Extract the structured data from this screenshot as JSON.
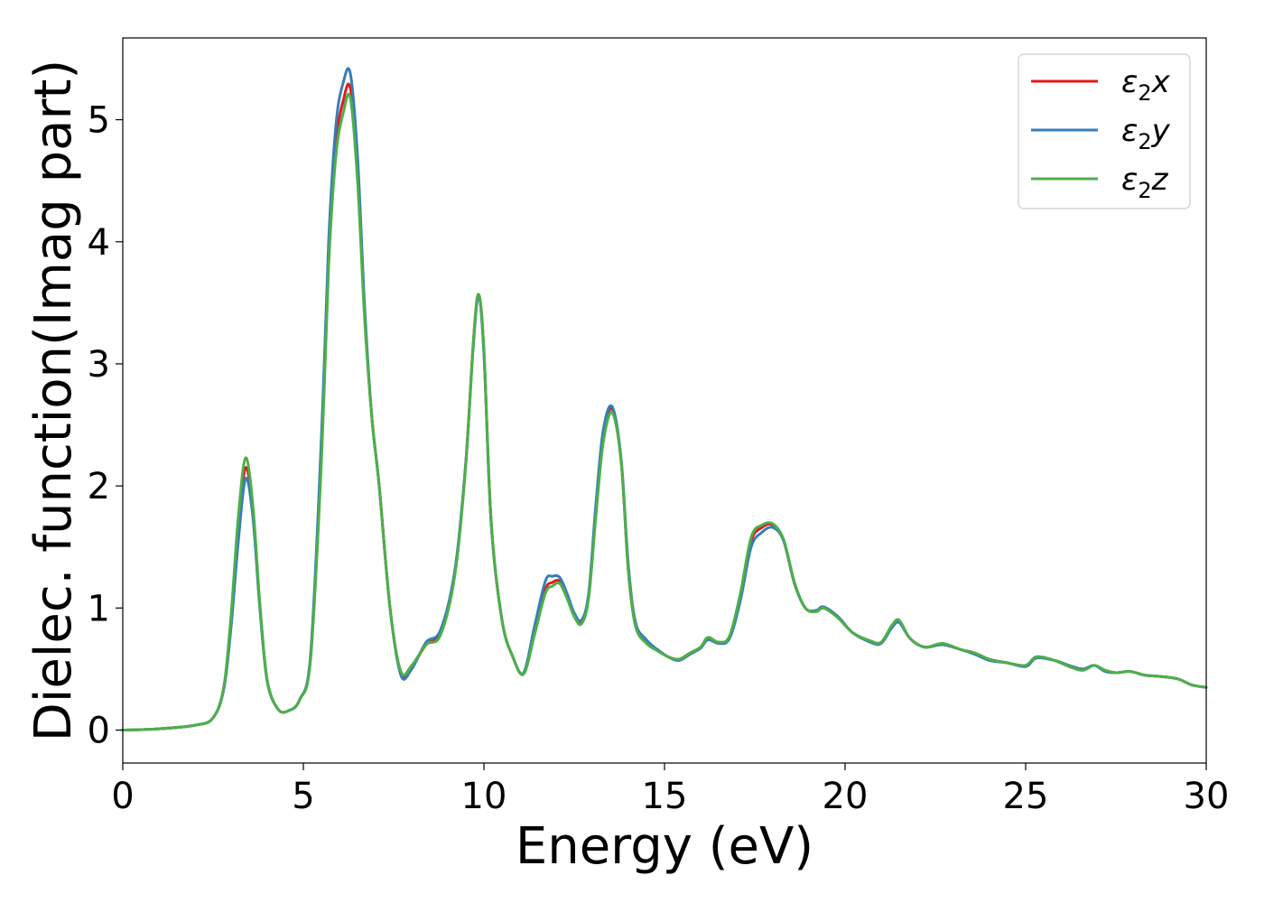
{
  "chart_data": {
    "type": "line",
    "xlabel": "Energy (eV)",
    "ylabel": "Dielec. function(Imag part)",
    "xlim": [
      0,
      30
    ],
    "ylim": [
      -0.27,
      5.67
    ],
    "xticks": [
      0,
      5,
      10,
      15,
      20,
      25,
      30
    ],
    "yticks": [
      0,
      1,
      2,
      3,
      4,
      5
    ],
    "grid": false,
    "legend_position": "top-right",
    "series": [
      {
        "name": "ε₂x",
        "legend": {
          "base": "ε",
          "sub": "2",
          "suffix": "x"
        },
        "color": "#e41a1c",
        "x": [
          0,
          1,
          2,
          2.5,
          2.8,
          3.0,
          3.2,
          3.4,
          3.6,
          3.8,
          4.0,
          4.3,
          4.6,
          4.9,
          5.2,
          5.5,
          5.7,
          5.9,
          6.1,
          6.3,
          6.5,
          6.7,
          6.9,
          7.1,
          7.4,
          7.7,
          8.0,
          8.4,
          8.8,
          9.2,
          9.5,
          9.7,
          9.85,
          10.0,
          10.2,
          10.5,
          10.8,
          11.1,
          11.4,
          11.7,
          11.9,
          12.1,
          12.3,
          12.5,
          12.7,
          12.9,
          13.1,
          13.3,
          13.55,
          13.8,
          14.0,
          14.2,
          14.5,
          14.8,
          15.1,
          15.4,
          15.7,
          16.0,
          16.2,
          16.5,
          16.8,
          17.1,
          17.4,
          17.7,
          18.0,
          18.3,
          18.6,
          18.9,
          19.2,
          19.4,
          19.8,
          20.2,
          20.7,
          21.0,
          21.3,
          21.5,
          21.8,
          22.2,
          22.7,
          23.2,
          23.6,
          24.0,
          24.5,
          25.0,
          25.3,
          25.8,
          26.3,
          26.6,
          26.9,
          27.2,
          27.5,
          27.9,
          28.3,
          28.7,
          29.2,
          29.6,
          30.0
        ],
        "y": [
          0,
          0.01,
          0.04,
          0.1,
          0.35,
          0.9,
          1.65,
          2.15,
          1.8,
          1.0,
          0.4,
          0.17,
          0.16,
          0.25,
          0.6,
          2.3,
          3.9,
          4.8,
          5.15,
          5.26,
          4.6,
          3.4,
          2.55,
          2.0,
          1.0,
          0.47,
          0.52,
          0.7,
          0.8,
          1.3,
          2.2,
          3.15,
          3.57,
          3.1,
          1.7,
          0.9,
          0.6,
          0.46,
          0.8,
          1.15,
          1.21,
          1.22,
          1.1,
          0.95,
          0.89,
          1.1,
          1.8,
          2.4,
          2.63,
          2.2,
          1.3,
          0.85,
          0.72,
          0.66,
          0.6,
          0.58,
          0.63,
          0.68,
          0.75,
          0.72,
          0.76,
          1.1,
          1.55,
          1.66,
          1.68,
          1.55,
          1.2,
          1.0,
          0.97,
          1.0,
          0.93,
          0.8,
          0.73,
          0.72,
          0.85,
          0.89,
          0.75,
          0.68,
          0.7,
          0.66,
          0.63,
          0.58,
          0.55,
          0.53,
          0.6,
          0.57,
          0.51,
          0.5,
          0.53,
          0.49,
          0.47,
          0.48,
          0.45,
          0.44,
          0.42,
          0.37,
          0.35
        ]
      },
      {
        "name": "ε₂y",
        "legend": {
          "base": "ε",
          "sub": "2",
          "suffix": "y"
        },
        "color": "#377eb8",
        "x": [
          0,
          1,
          2,
          2.5,
          2.8,
          3.0,
          3.2,
          3.4,
          3.6,
          3.8,
          4.0,
          4.3,
          4.6,
          4.9,
          5.2,
          5.5,
          5.7,
          5.9,
          6.1,
          6.3,
          6.5,
          6.7,
          6.9,
          7.1,
          7.4,
          7.7,
          8.0,
          8.4,
          8.8,
          9.2,
          9.5,
          9.7,
          9.85,
          10.0,
          10.2,
          10.5,
          10.8,
          11.1,
          11.4,
          11.7,
          11.9,
          12.1,
          12.3,
          12.5,
          12.7,
          12.9,
          13.1,
          13.3,
          13.55,
          13.8,
          14.0,
          14.2,
          14.5,
          14.8,
          15.1,
          15.4,
          15.7,
          16.0,
          16.2,
          16.5,
          16.8,
          17.1,
          17.4,
          17.7,
          18.0,
          18.3,
          18.6,
          18.9,
          19.2,
          19.4,
          19.8,
          20.2,
          20.7,
          21.0,
          21.3,
          21.5,
          21.8,
          22.2,
          22.7,
          23.2,
          23.6,
          24.0,
          24.5,
          25.0,
          25.3,
          25.8,
          26.3,
          26.6,
          26.9,
          27.2,
          27.5,
          27.9,
          28.3,
          28.7,
          29.2,
          29.6,
          30.0
        ],
        "y": [
          0,
          0.01,
          0.04,
          0.1,
          0.34,
          0.85,
          1.55,
          2.06,
          1.75,
          0.98,
          0.4,
          0.17,
          0.16,
          0.25,
          0.62,
          2.4,
          4.0,
          4.95,
          5.3,
          5.38,
          4.7,
          3.45,
          2.55,
          2.0,
          1.0,
          0.45,
          0.5,
          0.72,
          0.82,
          1.32,
          2.2,
          3.12,
          3.55,
          3.08,
          1.7,
          0.9,
          0.6,
          0.47,
          0.85,
          1.22,
          1.26,
          1.25,
          1.12,
          0.96,
          0.9,
          1.12,
          1.85,
          2.45,
          2.65,
          2.22,
          1.35,
          0.88,
          0.74,
          0.66,
          0.6,
          0.57,
          0.62,
          0.67,
          0.74,
          0.71,
          0.75,
          1.06,
          1.5,
          1.62,
          1.66,
          1.55,
          1.2,
          1.0,
          0.98,
          1.01,
          0.93,
          0.8,
          0.72,
          0.71,
          0.84,
          0.88,
          0.75,
          0.68,
          0.7,
          0.66,
          0.62,
          0.57,
          0.55,
          0.52,
          0.59,
          0.57,
          0.52,
          0.5,
          0.53,
          0.48,
          0.47,
          0.48,
          0.45,
          0.44,
          0.42,
          0.37,
          0.35
        ]
      },
      {
        "name": "ε₂z",
        "legend": {
          "base": "ε",
          "sub": "2",
          "suffix": "z"
        },
        "color": "#4daf4a",
        "x": [
          0,
          1,
          2,
          2.5,
          2.8,
          3.0,
          3.2,
          3.4,
          3.6,
          3.8,
          4.0,
          4.3,
          4.6,
          4.9,
          5.2,
          5.5,
          5.7,
          5.9,
          6.1,
          6.3,
          6.5,
          6.7,
          6.9,
          7.1,
          7.4,
          7.7,
          8.0,
          8.4,
          8.8,
          9.2,
          9.5,
          9.7,
          9.85,
          10.0,
          10.2,
          10.5,
          10.8,
          11.1,
          11.4,
          11.7,
          11.9,
          12.1,
          12.3,
          12.5,
          12.7,
          12.9,
          13.1,
          13.3,
          13.55,
          13.8,
          14.0,
          14.2,
          14.5,
          14.8,
          15.1,
          15.4,
          15.7,
          16.0,
          16.2,
          16.5,
          16.8,
          17.1,
          17.4,
          17.7,
          18.0,
          18.3,
          18.6,
          18.9,
          19.2,
          19.4,
          19.8,
          20.2,
          20.7,
          21.0,
          21.3,
          21.5,
          21.8,
          22.2,
          22.7,
          23.2,
          23.6,
          24.0,
          24.5,
          25.0,
          25.3,
          25.8,
          26.3,
          26.6,
          26.9,
          27.2,
          27.5,
          27.9,
          28.3,
          28.7,
          29.2,
          29.6,
          30.0
        ],
        "y": [
          0,
          0.01,
          0.04,
          0.1,
          0.36,
          0.95,
          1.75,
          2.23,
          1.85,
          1.02,
          0.41,
          0.17,
          0.16,
          0.25,
          0.58,
          2.2,
          3.8,
          4.7,
          5.05,
          5.18,
          4.5,
          3.35,
          2.55,
          2.0,
          1.0,
          0.48,
          0.53,
          0.7,
          0.78,
          1.28,
          2.18,
          3.15,
          3.57,
          3.12,
          1.72,
          0.9,
          0.6,
          0.46,
          0.78,
          1.12,
          1.18,
          1.2,
          1.08,
          0.93,
          0.87,
          1.08,
          1.75,
          2.35,
          2.6,
          2.2,
          1.3,
          0.85,
          0.71,
          0.65,
          0.6,
          0.58,
          0.63,
          0.68,
          0.76,
          0.72,
          0.77,
          1.12,
          1.58,
          1.68,
          1.69,
          1.56,
          1.21,
          1.0,
          0.97,
          1.0,
          0.92,
          0.8,
          0.73,
          0.72,
          0.86,
          0.9,
          0.75,
          0.68,
          0.71,
          0.66,
          0.63,
          0.58,
          0.55,
          0.53,
          0.6,
          0.57,
          0.51,
          0.49,
          0.53,
          0.49,
          0.47,
          0.48,
          0.45,
          0.44,
          0.42,
          0.37,
          0.35
        ]
      }
    ]
  }
}
